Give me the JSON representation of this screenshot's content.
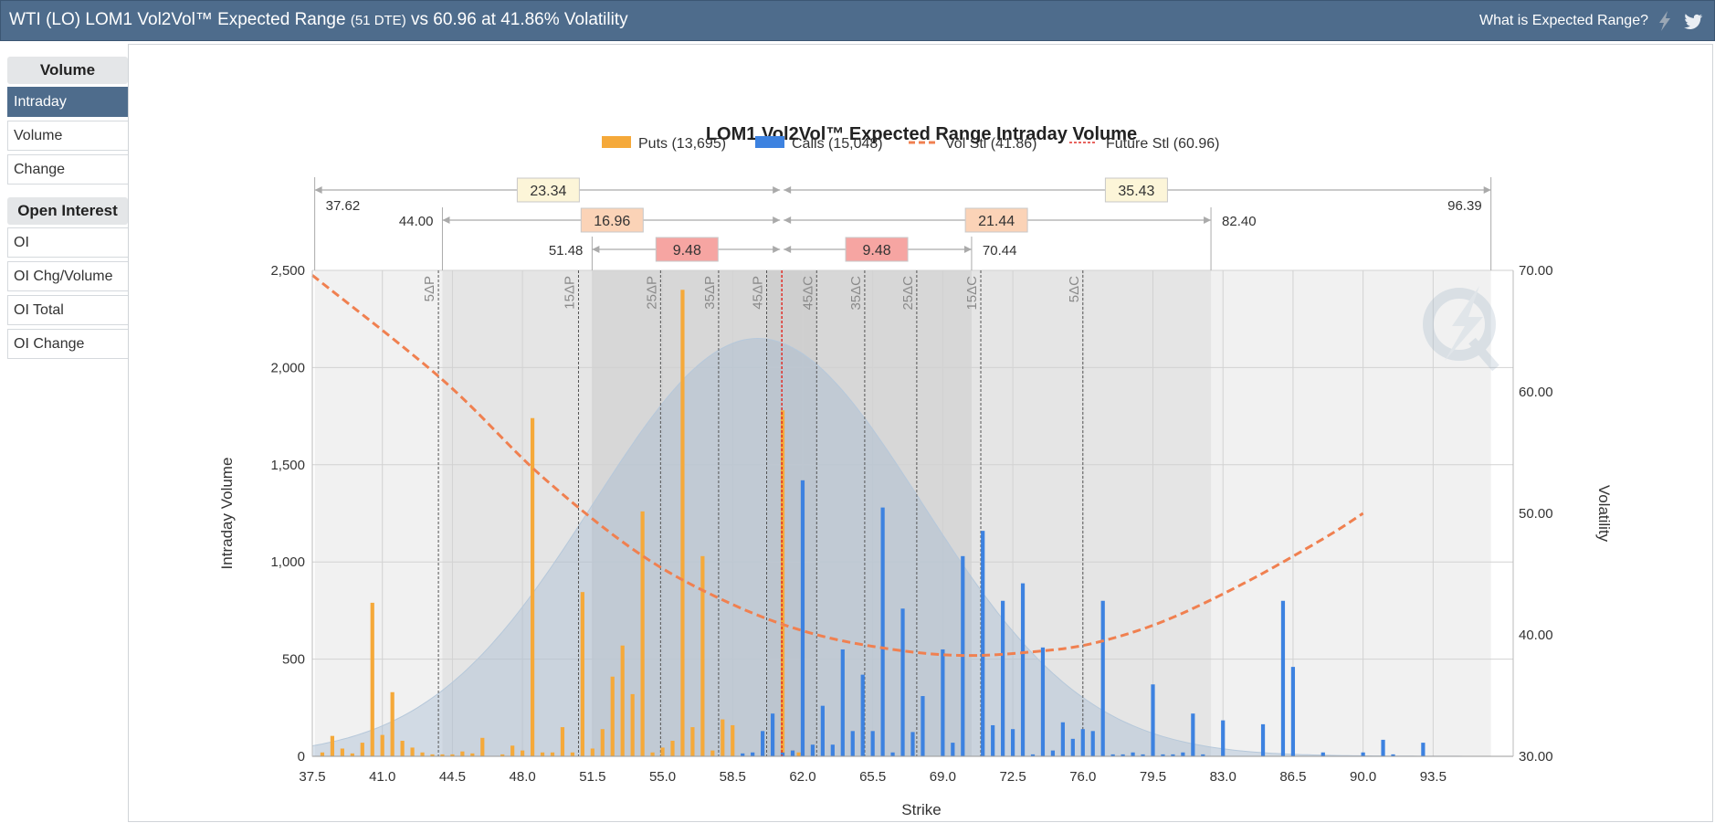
{
  "header": {
    "title_main": "WTI (LO) LOM1 Vol2Vol™ Expected Range",
    "title_dte": "(51 DTE)",
    "title_tail": "vs 60.96 at 41.86% Volatility",
    "help_link": "What is Expected Range?",
    "icons": [
      "lightning-icon",
      "twitter-icon"
    ]
  },
  "sidebar": {
    "volume_heading": "Volume",
    "volume_items": [
      "Intraday",
      "Volume",
      "Change"
    ],
    "active_item": "Intraday",
    "oi_heading": "Open Interest",
    "oi_items": [
      "OI",
      "OI Chg/Volume",
      "OI Total",
      "OI Change"
    ]
  },
  "colors": {
    "puts": "#f5a93a",
    "calls": "#3d82e0",
    "vol": "#f08050",
    "future": "#e0302a",
    "header": "#4e6c8c"
  },
  "chart_data": {
    "type": "bar",
    "title": "LOM1 Vol2Vol™ Expected Range Intraday Volume",
    "xlabel": "Strike",
    "ylabel": "Intraday Volume",
    "y2label": "Volatility",
    "xlim": [
      37.5,
      97.5
    ],
    "ylim": [
      0,
      2500
    ],
    "y2lim": [
      30,
      70
    ],
    "x_ticks": [
      "37.5",
      "41.0",
      "44.5",
      "48.0",
      "51.5",
      "55.0",
      "58.5",
      "62.0",
      "65.5",
      "69.0",
      "72.5",
      "76.0",
      "79.5",
      "83.0",
      "86.5",
      "90.0",
      "93.5"
    ],
    "y_ticks": [
      "0",
      "500",
      "1,000",
      "1,500",
      "2,000",
      "2,500"
    ],
    "y2_ticks": [
      "30.00",
      "40.00",
      "50.00",
      "60.00",
      "70.00"
    ],
    "legend": [
      {
        "label": "Puts (13,695)",
        "kind": "bar",
        "color": "#f5a93a"
      },
      {
        "label": "Calls (15,048)",
        "kind": "bar",
        "color": "#3d82e0"
      },
      {
        "label": "Vol Stl (41.86)",
        "kind": "dash",
        "color": "#f08050"
      },
      {
        "label": "Future Stl (60.96)",
        "kind": "dot",
        "color": "#e0302a"
      }
    ],
    "future_price": 60.96,
    "ranges": [
      {
        "label": "23.34",
        "low": 37.62,
        "high": 96.39,
        "low_label": "37.62",
        "high_label": "96.39",
        "right_label": "35.43",
        "fill": "#fcf5d8"
      },
      {
        "label": "16.96",
        "low": 44.0,
        "high": 82.4,
        "low_label": "44.00",
        "high_label": "82.40",
        "right_label": "21.44",
        "fill": "#fbd3b7"
      },
      {
        "label": "9.48",
        "low": 51.48,
        "high": 70.44,
        "low_label": "51.48",
        "high_label": "70.44",
        "right_label": "9.48",
        "fill": "#f6a5a2"
      }
    ],
    "delta_lines": [
      {
        "label": "5ΔP",
        "x": 43.8
      },
      {
        "label": "15ΔP",
        "x": 50.8
      },
      {
        "label": "25ΔP",
        "x": 54.9
      },
      {
        "label": "35ΔP",
        "x": 57.8
      },
      {
        "label": "45ΔP",
        "x": 60.2
      },
      {
        "label": "45ΔC",
        "x": 62.7
      },
      {
        "label": "35ΔC",
        "x": 65.1
      },
      {
        "label": "25ΔC",
        "x": 67.7
      },
      {
        "label": "15ΔC",
        "x": 70.9
      },
      {
        "label": "5ΔC",
        "x": 76.0
      }
    ],
    "puts": [
      [
        38.0,
        20
      ],
      [
        38.5,
        105
      ],
      [
        39.0,
        40
      ],
      [
        39.5,
        15
      ],
      [
        40.0,
        70
      ],
      [
        40.5,
        790
      ],
      [
        41.0,
        110
      ],
      [
        41.5,
        330
      ],
      [
        42.0,
        80
      ],
      [
        42.5,
        45
      ],
      [
        43.0,
        20
      ],
      [
        43.5,
        10
      ],
      [
        44.0,
        10
      ],
      [
        44.5,
        10
      ],
      [
        45.0,
        25
      ],
      [
        45.5,
        15
      ],
      [
        46.0,
        95
      ],
      [
        47.0,
        10
      ],
      [
        47.5,
        55
      ],
      [
        48.0,
        30
      ],
      [
        48.5,
        1740
      ],
      [
        49.0,
        20
      ],
      [
        49.5,
        20
      ],
      [
        50.0,
        150
      ],
      [
        50.5,
        20
      ],
      [
        51.0,
        845
      ],
      [
        51.5,
        40
      ],
      [
        52.0,
        140
      ],
      [
        52.5,
        410
      ],
      [
        53.0,
        570
      ],
      [
        53.5,
        320
      ],
      [
        54.0,
        1260
      ],
      [
        54.5,
        20
      ],
      [
        55.0,
        45
      ],
      [
        55.5,
        80
      ],
      [
        56.0,
        2400
      ],
      [
        56.5,
        150
      ],
      [
        57.0,
        1030
      ],
      [
        57.5,
        30
      ],
      [
        58.0,
        190
      ],
      [
        58.5,
        160
      ],
      [
        60.0,
        30
      ],
      [
        61.0,
        1780
      ],
      [
        61.5,
        30
      ],
      [
        61.8,
        20
      ]
    ],
    "calls": [
      [
        59.0,
        15
      ],
      [
        59.5,
        20
      ],
      [
        60.0,
        130
      ],
      [
        60.5,
        220
      ],
      [
        61.0,
        20
      ],
      [
        61.5,
        30
      ],
      [
        62.0,
        1420
      ],
      [
        62.5,
        60
      ],
      [
        63.0,
        260
      ],
      [
        63.5,
        60
      ],
      [
        64.0,
        550
      ],
      [
        64.5,
        130
      ],
      [
        65.0,
        420
      ],
      [
        65.5,
        130
      ],
      [
        66.0,
        1280
      ],
      [
        66.5,
        20
      ],
      [
        67.0,
        760
      ],
      [
        67.5,
        125
      ],
      [
        68.0,
        310
      ],
      [
        69.0,
        550
      ],
      [
        69.5,
        70
      ],
      [
        70.0,
        1030
      ],
      [
        71.0,
        1160
      ],
      [
        71.5,
        160
      ],
      [
        72.0,
        800
      ],
      [
        72.5,
        140
      ],
      [
        73.0,
        890
      ],
      [
        73.5,
        10
      ],
      [
        74.0,
        560
      ],
      [
        74.5,
        30
      ],
      [
        75.0,
        175
      ],
      [
        75.5,
        90
      ],
      [
        76.0,
        140
      ],
      [
        76.5,
        130
      ],
      [
        77.0,
        800
      ],
      [
        77.5,
        10
      ],
      [
        78.0,
        10
      ],
      [
        78.5,
        20
      ],
      [
        79.0,
        10
      ],
      [
        79.5,
        370
      ],
      [
        80.0,
        10
      ],
      [
        80.5,
        10
      ],
      [
        81.0,
        20
      ],
      [
        81.5,
        220
      ],
      [
        82.0,
        10
      ],
      [
        83.0,
        185
      ],
      [
        85.0,
        165
      ],
      [
        86.0,
        800
      ],
      [
        86.5,
        460
      ],
      [
        88.0,
        20
      ],
      [
        90.0,
        20
      ],
      [
        91.0,
        85
      ],
      [
        91.5,
        10
      ],
      [
        93.0,
        70
      ]
    ],
    "vol_curve": [
      [
        37.5,
        69.6
      ],
      [
        44.0,
        61.0
      ],
      [
        49.0,
        53.0
      ],
      [
        54.0,
        46.5
      ],
      [
        58.5,
        42.5
      ],
      [
        62.5,
        40.1
      ],
      [
        66.5,
        38.8
      ],
      [
        70.0,
        38.3
      ],
      [
        73.5,
        38.6
      ],
      [
        76.5,
        39.3
      ],
      [
        80.0,
        41.1
      ],
      [
        84.0,
        44.2
      ],
      [
        88.0,
        47.9
      ],
      [
        90.0,
        50.0
      ]
    ],
    "distribution_peak": 2150
  }
}
